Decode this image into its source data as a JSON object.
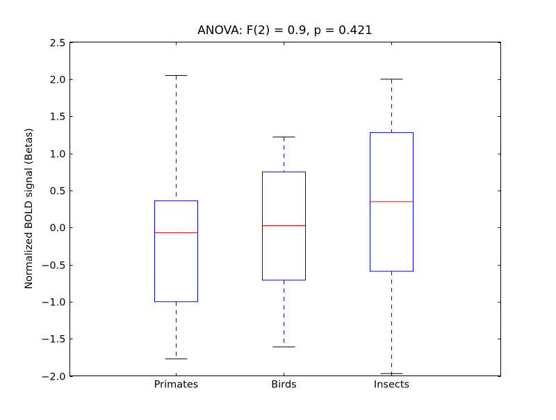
{
  "chart_data": {
    "type": "box",
    "title": "ANOVA: F(2) = 0.9, p = 0.421",
    "xlabel": "",
    "ylabel": "Normalized BOLD signal (Betas)",
    "ylim": [
      -2.0,
      2.5
    ],
    "yticks": [
      "-2.0",
      "-1.5",
      "-1.0",
      "-0.5",
      "0.0",
      "0.5",
      "1.0",
      "1.5",
      "2.0",
      "2.5"
    ],
    "categories": [
      "Primates",
      "Birds",
      "Insects"
    ],
    "boxes": [
      {
        "label": "Primates",
        "whisker_low": -1.77,
        "q1": -1.0,
        "median": -0.07,
        "q3": 0.36,
        "whisker_high": 2.05
      },
      {
        "label": "Birds",
        "whisker_low": -1.61,
        "q1": -0.71,
        "median": 0.025,
        "q3": 0.75,
        "whisker_high": 1.22
      },
      {
        "label": "Insects",
        "whisker_low": -1.97,
        "q1": -0.59,
        "median": 0.35,
        "q3": 1.28,
        "whisker_high": 2.0
      }
    ],
    "grid": false,
    "colors": {
      "box": "#0000ff",
      "median": "#ff0000",
      "cap": "#000000"
    }
  }
}
